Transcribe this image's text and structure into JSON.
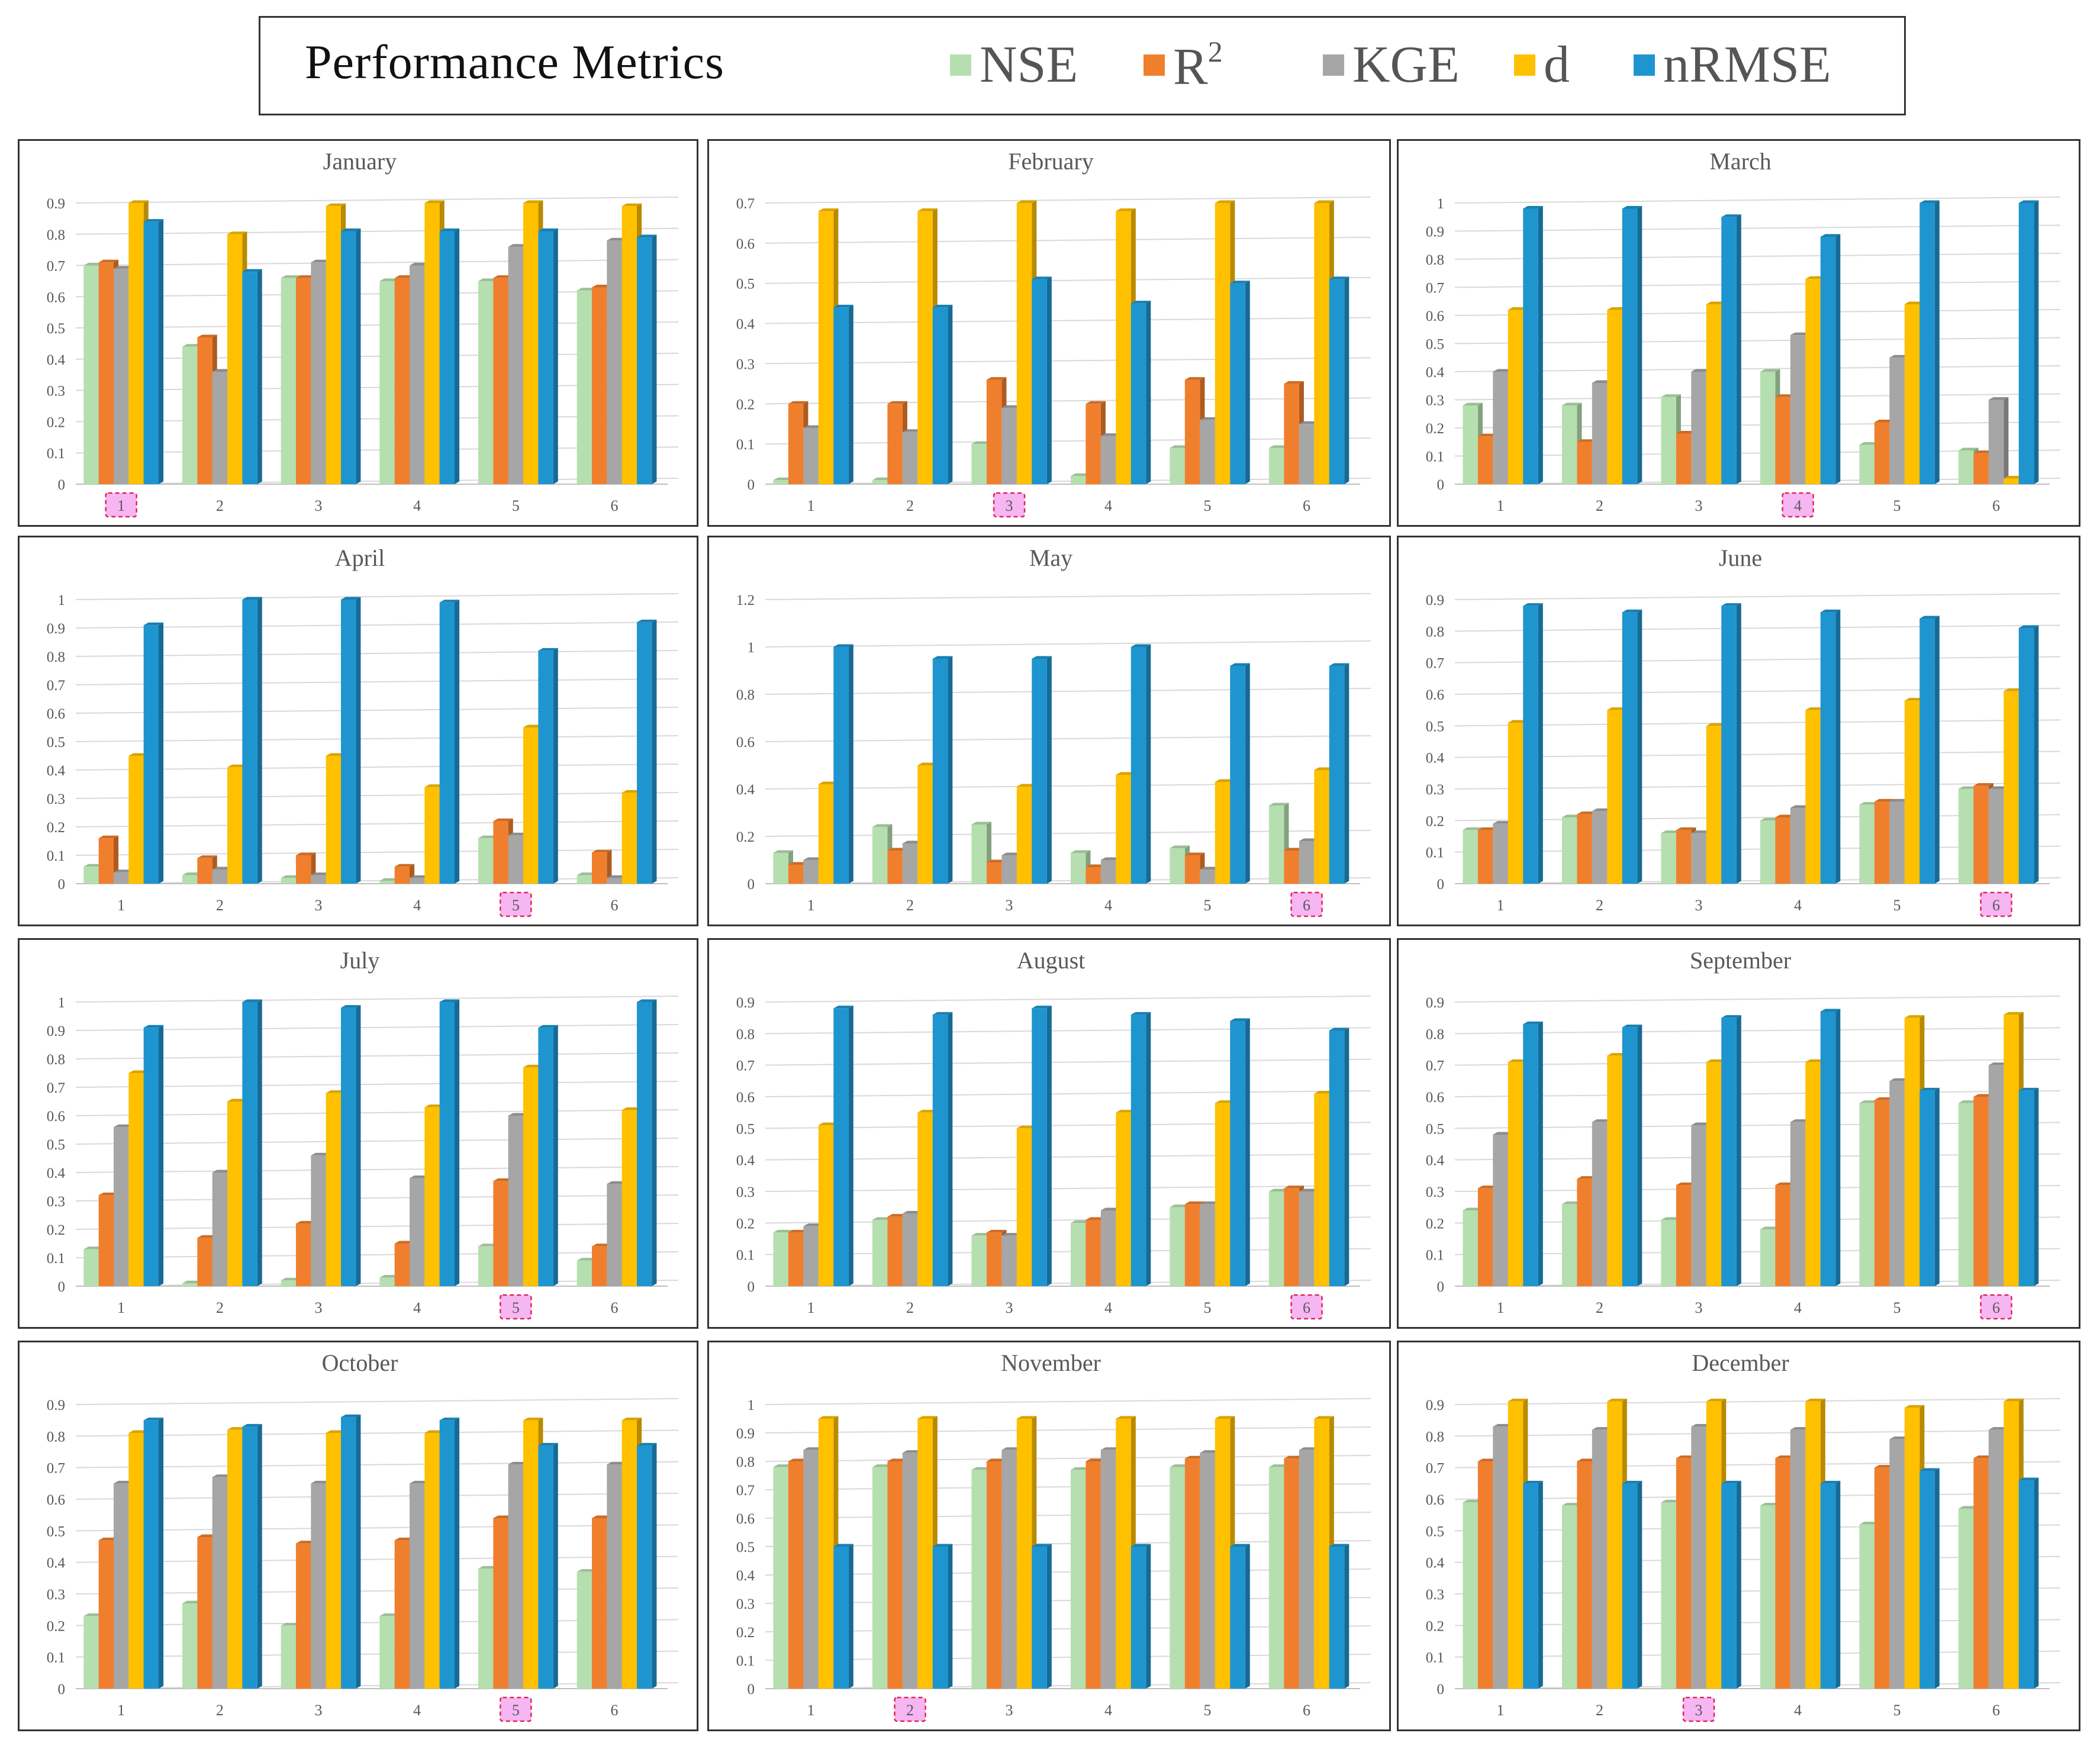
{
  "legend": {
    "title": "Performance Metrics",
    "items": [
      {
        "key": "NSE",
        "label": "NSE",
        "color": "#b6dfb0"
      },
      {
        "key": "R2",
        "label": "R",
        "sup": "2",
        "color": "#f07f2d"
      },
      {
        "key": "KGE",
        "label": "KGE",
        "color": "#a6a6a6"
      },
      {
        "key": "d",
        "label": "d",
        "color": "#ffc000"
      },
      {
        "key": "nRMSE",
        "label": "nRMSE",
        "color": "#1f95d0"
      }
    ]
  },
  "chart_data": [
    {
      "type": "bar",
      "title": "January",
      "categories": [
        "1",
        "2",
        "3",
        "4",
        "5",
        "6"
      ],
      "ylim": [
        0,
        0.9
      ],
      "yticks": [
        "0",
        "0.1",
        "0.2",
        "0.3",
        "0.4",
        "0.5",
        "0.6",
        "0.7",
        "0.8",
        "0.9"
      ],
      "highlighted_category": "1",
      "series": [
        {
          "name": "NSE",
          "values": [
            0.7,
            0.44,
            0.66,
            0.65,
            0.65,
            0.62
          ]
        },
        {
          "name": "R2",
          "values": [
            0.71,
            0.47,
            0.66,
            0.66,
            0.66,
            0.63
          ]
        },
        {
          "name": "KGE",
          "values": [
            0.69,
            0.36,
            0.71,
            0.7,
            0.76,
            0.78
          ]
        },
        {
          "name": "d",
          "values": [
            0.9,
            0.8,
            0.89,
            0.9,
            0.9,
            0.89
          ]
        },
        {
          "name": "nRMSE",
          "values": [
            0.84,
            0.68,
            0.81,
            0.81,
            0.81,
            0.79
          ]
        }
      ]
    },
    {
      "type": "bar",
      "title": "February",
      "categories": [
        "1",
        "2",
        "3",
        "4",
        "5",
        "6"
      ],
      "ylim": [
        0,
        0.7
      ],
      "yticks": [
        "0",
        "0.1",
        "0.2",
        "0.3",
        "0.4",
        "0.5",
        "0.6",
        "0.7"
      ],
      "highlighted_category": "3",
      "series": [
        {
          "name": "NSE",
          "values": [
            0.01,
            0.01,
            0.1,
            0.02,
            0.09,
            0.09
          ]
        },
        {
          "name": "R2",
          "values": [
            0.2,
            0.2,
            0.26,
            0.2,
            0.26,
            0.25
          ]
        },
        {
          "name": "KGE",
          "values": [
            0.14,
            0.13,
            0.19,
            0.12,
            0.16,
            0.15
          ]
        },
        {
          "name": "d",
          "values": [
            0.68,
            0.68,
            0.7,
            0.68,
            0.7,
            0.7
          ]
        },
        {
          "name": "nRMSE",
          "values": [
            0.44,
            0.44,
            0.51,
            0.45,
            0.5,
            0.51
          ]
        }
      ]
    },
    {
      "type": "bar",
      "title": "March",
      "categories": [
        "1",
        "2",
        "3",
        "4",
        "5",
        "6"
      ],
      "ylim": [
        0,
        1
      ],
      "yticks": [
        "0",
        "0.1",
        "0.2",
        "0.3",
        "0.4",
        "0.5",
        "0.6",
        "0.7",
        "0.8",
        "0.9",
        "1"
      ],
      "highlighted_category": "4",
      "series": [
        {
          "name": "NSE",
          "values": [
            0.28,
            0.28,
            0.31,
            0.4,
            0.14,
            0.12
          ]
        },
        {
          "name": "R2",
          "values": [
            0.17,
            0.15,
            0.18,
            0.31,
            0.22,
            0.11
          ]
        },
        {
          "name": "KGE",
          "values": [
            0.4,
            0.36,
            0.4,
            0.53,
            0.45,
            0.3
          ]
        },
        {
          "name": "d",
          "values": [
            0.62,
            0.62,
            0.64,
            0.73,
            0.64,
            0.02
          ]
        },
        {
          "name": "nRMSE",
          "values": [
            0.98,
            0.98,
            0.95,
            0.88,
            1.0,
            1.0
          ]
        }
      ]
    },
    {
      "type": "bar",
      "title": "April",
      "categories": [
        "1",
        "2",
        "3",
        "4",
        "5",
        "6"
      ],
      "ylim": [
        0,
        1
      ],
      "yticks": [
        "0",
        "0.1",
        "0.2",
        "0.3",
        "0.4",
        "0.5",
        "0.6",
        "0.7",
        "0.8",
        "0.9",
        "1"
      ],
      "highlighted_category": "5",
      "series": [
        {
          "name": "NSE",
          "values": [
            0.06,
            0.03,
            0.02,
            0.01,
            0.16,
            0.03
          ]
        },
        {
          "name": "R2",
          "values": [
            0.16,
            0.09,
            0.1,
            0.06,
            0.22,
            0.11
          ]
        },
        {
          "name": "KGE",
          "values": [
            0.04,
            0.05,
            0.03,
            0.02,
            0.17,
            0.02
          ]
        },
        {
          "name": "d",
          "values": [
            0.45,
            0.41,
            0.45,
            0.34,
            0.55,
            0.32
          ]
        },
        {
          "name": "nRMSE",
          "values": [
            0.91,
            1.0,
            1.0,
            0.99,
            0.82,
            0.92
          ]
        }
      ]
    },
    {
      "type": "bar",
      "title": "May",
      "categories": [
        "1",
        "2",
        "3",
        "4",
        "5",
        "6"
      ],
      "ylim": [
        0,
        1.2
      ],
      "yticks": [
        "0",
        "0.2",
        "0.4",
        "0.6",
        "0.8",
        "1",
        "1.2"
      ],
      "highlighted_category": "6",
      "series": [
        {
          "name": "NSE",
          "values": [
            0.13,
            0.24,
            0.25,
            0.13,
            0.15,
            0.33
          ]
        },
        {
          "name": "R2",
          "values": [
            0.08,
            0.14,
            0.09,
            0.07,
            0.12,
            0.14
          ]
        },
        {
          "name": "KGE",
          "values": [
            0.1,
            0.17,
            0.12,
            0.1,
            0.06,
            0.18
          ]
        },
        {
          "name": "d",
          "values": [
            0.42,
            0.5,
            0.41,
            0.46,
            0.43,
            0.48
          ]
        },
        {
          "name": "nRMSE",
          "values": [
            1.0,
            0.95,
            0.95,
            1.0,
            0.92,
            0.92
          ]
        }
      ]
    },
    {
      "type": "bar",
      "title": "June",
      "categories": [
        "1",
        "2",
        "3",
        "4",
        "5",
        "6"
      ],
      "ylim": [
        0,
        0.9
      ],
      "yticks": [
        "0",
        "0.1",
        "0.2",
        "0.3",
        "0.4",
        "0.5",
        "0.6",
        "0.7",
        "0.8",
        "0.9"
      ],
      "highlighted_category": "6",
      "series": [
        {
          "name": "NSE",
          "values": [
            0.17,
            0.21,
            0.16,
            0.2,
            0.25,
            0.3
          ]
        },
        {
          "name": "R2",
          "values": [
            0.17,
            0.22,
            0.17,
            0.21,
            0.26,
            0.31
          ]
        },
        {
          "name": "KGE",
          "values": [
            0.19,
            0.23,
            0.16,
            0.24,
            0.26,
            0.3
          ]
        },
        {
          "name": "d",
          "values": [
            0.51,
            0.55,
            0.5,
            0.55,
            0.58,
            0.61
          ]
        },
        {
          "name": "nRMSE",
          "values": [
            0.88,
            0.86,
            0.88,
            0.86,
            0.84,
            0.81
          ]
        }
      ]
    },
    {
      "type": "bar",
      "title": "July",
      "categories": [
        "1",
        "2",
        "3",
        "4",
        "5",
        "6"
      ],
      "ylim": [
        0,
        1
      ],
      "yticks": [
        "0",
        "0.1",
        "0.2",
        "0.3",
        "0.4",
        "0.5",
        "0.6",
        "0.7",
        "0.8",
        "0.9",
        "1"
      ],
      "highlighted_category": "5",
      "series": [
        {
          "name": "NSE",
          "values": [
            0.13,
            0.01,
            0.02,
            0.03,
            0.14,
            0.09
          ]
        },
        {
          "name": "R2",
          "values": [
            0.32,
            0.17,
            0.22,
            0.15,
            0.37,
            0.14
          ]
        },
        {
          "name": "KGE",
          "values": [
            0.56,
            0.4,
            0.46,
            0.38,
            0.6,
            0.36
          ]
        },
        {
          "name": "d",
          "values": [
            0.75,
            0.65,
            0.68,
            0.63,
            0.77,
            0.62
          ]
        },
        {
          "name": "nRMSE",
          "values": [
            0.91,
            1.0,
            0.98,
            1.0,
            0.91,
            1.0
          ]
        }
      ]
    },
    {
      "type": "bar",
      "title": "August",
      "categories": [
        "1",
        "2",
        "3",
        "4",
        "5",
        "6"
      ],
      "ylim": [
        0,
        0.9
      ],
      "yticks": [
        "0",
        "0.1",
        "0.2",
        "0.3",
        "0.4",
        "0.5",
        "0.6",
        "0.7",
        "0.8",
        "0.9"
      ],
      "highlighted_category": "6",
      "series": [
        {
          "name": "NSE",
          "values": [
            0.17,
            0.21,
            0.16,
            0.2,
            0.25,
            0.3
          ]
        },
        {
          "name": "R2",
          "values": [
            0.17,
            0.22,
            0.17,
            0.21,
            0.26,
            0.31
          ]
        },
        {
          "name": "KGE",
          "values": [
            0.19,
            0.23,
            0.16,
            0.24,
            0.26,
            0.3
          ]
        },
        {
          "name": "d",
          "values": [
            0.51,
            0.55,
            0.5,
            0.55,
            0.58,
            0.61
          ]
        },
        {
          "name": "nRMSE",
          "values": [
            0.88,
            0.86,
            0.88,
            0.86,
            0.84,
            0.81
          ]
        }
      ]
    },
    {
      "type": "bar",
      "title": "September",
      "categories": [
        "1",
        "2",
        "3",
        "4",
        "5",
        "6"
      ],
      "ylim": [
        0,
        0.9
      ],
      "yticks": [
        "0",
        "0.1",
        "0.2",
        "0.3",
        "0.4",
        "0.5",
        "0.6",
        "0.7",
        "0.8",
        "0.9"
      ],
      "highlighted_category": "6",
      "series": [
        {
          "name": "NSE",
          "values": [
            0.24,
            0.26,
            0.21,
            0.18,
            0.58,
            0.58
          ]
        },
        {
          "name": "R2",
          "values": [
            0.31,
            0.34,
            0.32,
            0.32,
            0.59,
            0.6
          ]
        },
        {
          "name": "KGE",
          "values": [
            0.48,
            0.52,
            0.51,
            0.52,
            0.65,
            0.7
          ]
        },
        {
          "name": "d",
          "values": [
            0.71,
            0.73,
            0.71,
            0.71,
            0.85,
            0.86
          ]
        },
        {
          "name": "nRMSE",
          "values": [
            0.83,
            0.82,
            0.85,
            0.87,
            0.62,
            0.62
          ]
        }
      ]
    },
    {
      "type": "bar",
      "title": "October",
      "categories": [
        "1",
        "2",
        "3",
        "4",
        "5",
        "6"
      ],
      "ylim": [
        0,
        0.9
      ],
      "yticks": [
        "0",
        "0.1",
        "0.2",
        "0.3",
        "0.4",
        "0.5",
        "0.6",
        "0.7",
        "0.8",
        "0.9"
      ],
      "highlighted_category": "5",
      "series": [
        {
          "name": "NSE",
          "values": [
            0.23,
            0.27,
            0.2,
            0.23,
            0.38,
            0.37
          ]
        },
        {
          "name": "R2",
          "values": [
            0.47,
            0.48,
            0.46,
            0.47,
            0.54,
            0.54
          ]
        },
        {
          "name": "KGE",
          "values": [
            0.65,
            0.67,
            0.65,
            0.65,
            0.71,
            0.71
          ]
        },
        {
          "name": "d",
          "values": [
            0.81,
            0.82,
            0.81,
            0.81,
            0.85,
            0.85
          ]
        },
        {
          "name": "nRMSE",
          "values": [
            0.85,
            0.83,
            0.86,
            0.85,
            0.77,
            0.77
          ]
        }
      ]
    },
    {
      "type": "bar",
      "title": "November",
      "categories": [
        "1",
        "2",
        "3",
        "4",
        "5",
        "6"
      ],
      "ylim": [
        0,
        1
      ],
      "yticks": [
        "0",
        "0.1",
        "0.2",
        "0.3",
        "0.4",
        "0.5",
        "0.6",
        "0.7",
        "0.8",
        "0.9",
        "1"
      ],
      "highlighted_category": "2",
      "series": [
        {
          "name": "NSE",
          "values": [
            0.78,
            0.78,
            0.77,
            0.77,
            0.78,
            0.78
          ]
        },
        {
          "name": "R2",
          "values": [
            0.8,
            0.8,
            0.8,
            0.8,
            0.81,
            0.81
          ]
        },
        {
          "name": "KGE",
          "values": [
            0.84,
            0.83,
            0.84,
            0.84,
            0.83,
            0.84
          ]
        },
        {
          "name": "d",
          "values": [
            0.95,
            0.95,
            0.95,
            0.95,
            0.95,
            0.95
          ]
        },
        {
          "name": "nRMSE",
          "values": [
            0.5,
            0.5,
            0.5,
            0.5,
            0.5,
            0.5
          ]
        }
      ]
    },
    {
      "type": "bar",
      "title": "December",
      "categories": [
        "1",
        "2",
        "3",
        "4",
        "5",
        "6"
      ],
      "ylim": [
        0,
        0.9
      ],
      "yticks": [
        "0",
        "0.1",
        "0.2",
        "0.3",
        "0.4",
        "0.5",
        "0.6",
        "0.7",
        "0.8",
        "0.9"
      ],
      "highlighted_category": "3",
      "series": [
        {
          "name": "NSE",
          "values": [
            0.59,
            0.58,
            0.59,
            0.58,
            0.52,
            0.57
          ]
        },
        {
          "name": "R2",
          "values": [
            0.72,
            0.72,
            0.73,
            0.73,
            0.7,
            0.73
          ]
        },
        {
          "name": "KGE",
          "values": [
            0.83,
            0.82,
            0.83,
            0.82,
            0.79,
            0.82
          ]
        },
        {
          "name": "d",
          "values": [
            0.91,
            0.91,
            0.91,
            0.91,
            0.89,
            0.91
          ]
        },
        {
          "name": "nRMSE",
          "values": [
            0.65,
            0.65,
            0.65,
            0.65,
            0.69,
            0.66
          ]
        }
      ]
    }
  ]
}
